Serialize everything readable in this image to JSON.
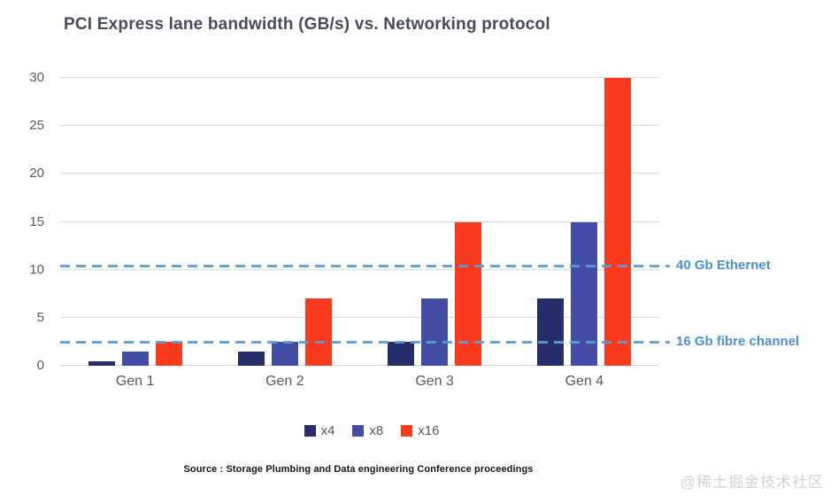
{
  "chart_data": {
    "type": "bar",
    "title": "PCI Express lane bandwidth (GB/s) vs. Networking protocol",
    "xlabel": "",
    "ylabel": "",
    "categories": [
      "Gen 1",
      "Gen 2",
      "Gen 3",
      "Gen 4"
    ],
    "series": [
      {
        "name": "x4",
        "color": "#262e69",
        "values": [
          0.5,
          1.5,
          2.5,
          7
        ]
      },
      {
        "name": "x8",
        "color": "#434da6",
        "values": [
          1.5,
          2.5,
          7,
          15
        ]
      },
      {
        "name": "x16",
        "color": "#fa3a1c",
        "values": [
          2.5,
          7,
          15,
          30
        ]
      }
    ],
    "ylim": [
      0,
      30
    ],
    "yticks": [
      0,
      5,
      10,
      15,
      20,
      25,
      30
    ],
    "grid": true,
    "legend_position": "bottom",
    "reference_lines": [
      {
        "label": "40 Gb Ethernet",
        "value": 10.3,
        "line_color": "#5b9bd5",
        "label_color": "#4a90d8",
        "style": "dashed"
      },
      {
        "label": "16 Gb fibre channel",
        "value": 2.4,
        "line_color": "#5b9bd5",
        "label_color": "#4a90d8",
        "style": "dashed"
      }
    ]
  },
  "source_note": "Source : Storage Plumbing and Data engineering Conference proceedings",
  "watermark": "@稀土掘金技术社区",
  "colors": {
    "title_text": "#474b5c",
    "axis_text": "#595959",
    "gridline": "#d9d9d9",
    "background": "#ffffff"
  }
}
